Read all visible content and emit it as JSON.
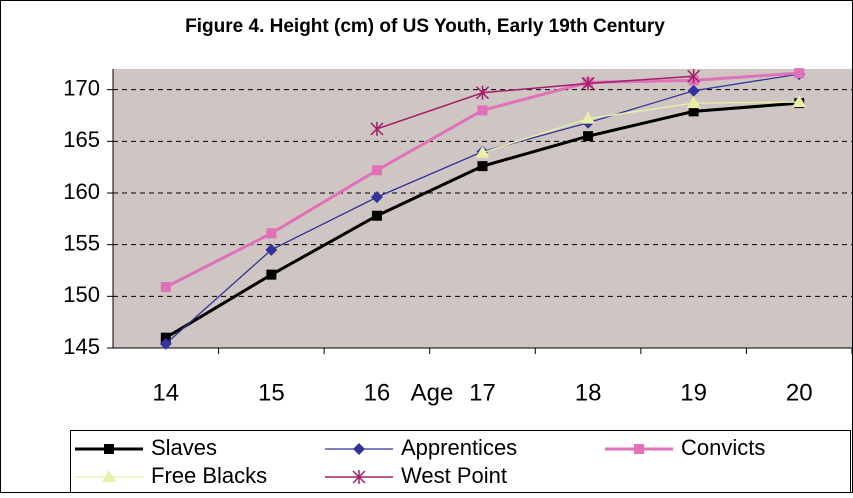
{
  "chart_data": {
    "type": "line",
    "title": "Figure 4. Height (cm) of US Youth, Early 19th Century",
    "x_label": "Age",
    "categories": [
      "14",
      "15",
      "16",
      "17",
      "18",
      "19",
      "20"
    ],
    "series": [
      {
        "name": "Slaves",
        "color": "#000000",
        "marker": "square",
        "values": [
          146,
          152.1,
          157.8,
          162.6,
          165.5,
          167.9,
          168.7
        ]
      },
      {
        "name": "Apprentices",
        "color": "#333399",
        "marker": "diamond",
        "values": [
          145.4,
          154.5,
          159.6,
          164,
          166.8,
          169.9,
          171.5
        ]
      },
      {
        "name": "Convicts",
        "color": "#e070b8",
        "marker": "square",
        "values": [
          150.9,
          156.1,
          162.2,
          168,
          170.7,
          170.9,
          171.6
        ]
      },
      {
        "name": "Free Blacks",
        "color": "#e8f0a8",
        "marker": "triangle",
        "values": [
          null,
          null,
          null,
          163.9,
          167.2,
          168.7,
          168.8
        ]
      },
      {
        "name": "West Point",
        "color": "#a0206a",
        "marker": "star",
        "values": [
          null,
          null,
          166.2,
          169.7,
          170.6,
          171.3,
          null
        ]
      }
    ],
    "ylim": [
      145,
      172
    ],
    "yticks": [
      145,
      150,
      155,
      160,
      165,
      170
    ],
    "grid": true
  }
}
